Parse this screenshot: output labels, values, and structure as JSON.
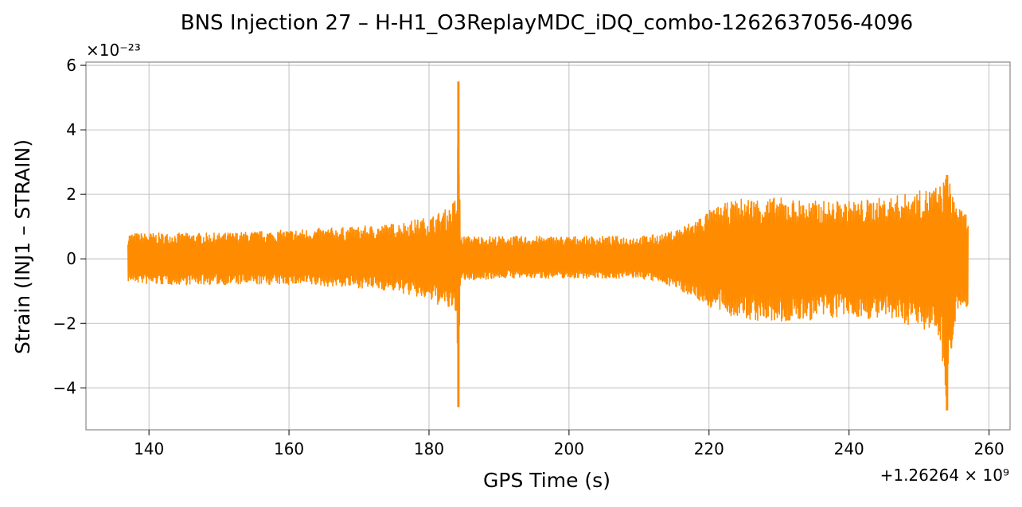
{
  "chart_data": {
    "type": "line",
    "title": "BNS Injection 27 – H-H1_O3ReplayMDC_iDQ_combo-1262637056-4096",
    "xlabel": "GPS Time (s)",
    "ylabel": "Strain (INJ1 – STRAIN)",
    "x_offset_label": "+1.26264 × 10⁹",
    "y_scale_label": "×10⁻²³",
    "xlim": [
      131,
      263
    ],
    "ylim": [
      -5.3,
      6.1
    ],
    "x_ticks": [
      140,
      160,
      180,
      200,
      220,
      240,
      260
    ],
    "x_tick_labels": [
      "140",
      "160",
      "180",
      "200",
      "220",
      "240",
      "260"
    ],
    "y_ticks": [
      -4,
      -2,
      0,
      2,
      4,
      6
    ],
    "y_tick_labels": [
      "−4",
      "−2",
      "0",
      "2",
      "4",
      "6"
    ],
    "grid": true,
    "series": [
      {
        "color": "#ff8c00",
        "envelope": {
          "x": [
            137,
            140,
            150,
            160,
            170,
            175,
            180,
            183,
            184,
            184.2,
            184.5,
            190,
            200,
            210,
            214,
            217,
            220,
            222,
            225,
            230,
            235,
            240,
            245,
            250,
            253,
            254,
            255,
            256,
            257
          ],
          "upper": [
            0.8,
            0.8,
            0.8,
            0.9,
            1.0,
            1.1,
            1.3,
            1.6,
            2.0,
            5.5,
            0.7,
            0.7,
            0.7,
            0.7,
            0.8,
            1.1,
            1.5,
            1.7,
            1.9,
            1.9,
            1.8,
            1.8,
            1.9,
            2.1,
            2.3,
            2.6,
            2.0,
            1.5,
            1.4
          ],
          "lower": [
            -0.7,
            -0.8,
            -0.8,
            -0.8,
            -0.9,
            -1.0,
            -1.3,
            -1.6,
            -2.0,
            -4.6,
            -0.7,
            -0.6,
            -0.6,
            -0.6,
            -0.8,
            -1.1,
            -1.5,
            -1.7,
            -1.9,
            -2.0,
            -1.9,
            -1.8,
            -1.9,
            -2.1,
            -2.4,
            -4.7,
            -2.0,
            -1.6,
            -1.5
          ]
        }
      }
    ]
  }
}
